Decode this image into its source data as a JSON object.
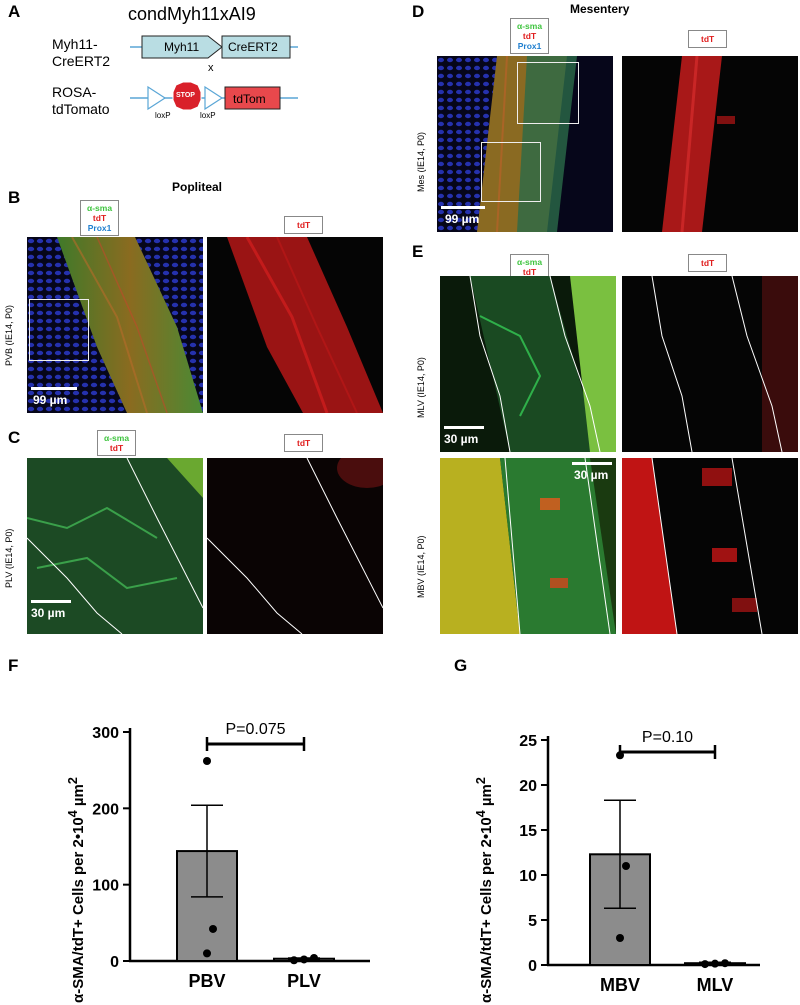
{
  "panelA": {
    "letter": "A",
    "title": "condMyh11xAI9",
    "line1_label": "Myh11-\nCreERT2",
    "line1_box1": "Myh11",
    "line1_box2": "CreERT2",
    "cross": "x",
    "line2_label": "ROSA-\ntdTomato",
    "stop": "STOP",
    "tdtom": "tdTom",
    "loxp1": "loxP",
    "loxp2": "loxP"
  },
  "panelB": {
    "letter": "B",
    "region": "Popliteal",
    "legend_l1": "α-sma",
    "legend_l2": "tdT",
    "legend_l3": "Prox1",
    "legend_right": "tdT",
    "side_label": "PVB (IE14, P0)",
    "scale": "99 µm"
  },
  "panelC": {
    "letter": "C",
    "legend_l1": "α-sma",
    "legend_l2": "tdT",
    "legend_right": "tdT",
    "side_label": "PLV (IE14, P0)",
    "scale": "30 µm"
  },
  "panelD": {
    "letter": "D",
    "region": "Mesentery",
    "legend_l1": "α-sma",
    "legend_l2": "tdT",
    "legend_l3": "Prox1",
    "legend_right": "tdT",
    "side_label": "Mes (IE14, P0)",
    "scale": "99 µm"
  },
  "panelE": {
    "letter": "E",
    "legend_l1": "α-sma",
    "legend_l2": "tdT",
    "legend_right": "tdT",
    "side_label_top": "MLV (IE14, P0)",
    "side_label_bottom": "MBV (IE14, P0)",
    "scale_top": "30 µm",
    "scale_bottom": "30 µm"
  },
  "colors": {
    "bar_fill": "#8c8c8c",
    "micro_bg": "#050505",
    "green": "#3ec43e",
    "red": "#e01d1d",
    "blue": "#2030c0",
    "box_fill": "#b9dde3",
    "stop_red": "#d9202a",
    "tdtom_fill": "#e8484c"
  },
  "chart_data": [
    {
      "letter": "F",
      "type": "bar",
      "categories": [
        "PBV",
        "PLV"
      ],
      "values": [
        144,
        3
      ],
      "error": [
        60,
        1
      ],
      "points": [
        [
          262,
          42,
          10
        ],
        [
          1,
          2,
          4
        ]
      ],
      "ylabel_main": "α-SMA/tdT+ Cells per 2•10",
      "ylabel_sup4": "4",
      "ylabel_unit": "µm",
      "ylabel_sup2": "2",
      "ylim": [
        0,
        300
      ],
      "yticks": [
        0,
        100,
        200,
        300
      ],
      "yticklabels": [
        "0",
        "100",
        "200",
        "300"
      ],
      "annotation": "P=0.075"
    },
    {
      "letter": "G",
      "type": "bar",
      "categories": [
        "MBV",
        "MLV"
      ],
      "values": [
        12.3,
        0.2
      ],
      "error": [
        6,
        0.1
      ],
      "points": [
        [
          23.3,
          11,
          3
        ],
        [
          0.1,
          0.15,
          0.2
        ]
      ],
      "ylabel_main": "α-SMA/tdT+ Cells per 2•10",
      "ylabel_sup4": "4",
      "ylabel_unit": "µm",
      "ylabel_sup2": "2",
      "ylim": [
        0,
        25
      ],
      "yticks": [
        0,
        5,
        10,
        15,
        20,
        25
      ],
      "yticklabels": [
        "0",
        "5",
        "10",
        "15",
        "20",
        "25"
      ],
      "annotation": "P=0.10"
    }
  ]
}
